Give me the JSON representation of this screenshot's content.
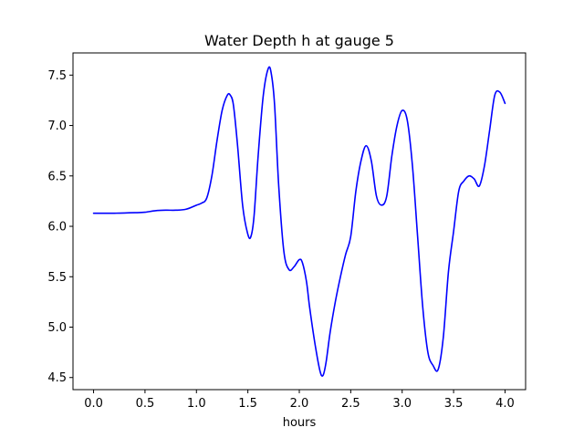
{
  "chart_data": {
    "type": "line",
    "title": "Water Depth h at gauge 5",
    "xlabel": "hours",
    "ylabel": "",
    "xlim": [
      -0.2,
      4.2
    ],
    "ylim": [
      4.38,
      7.72
    ],
    "xticks": [
      "0.0",
      "0.5",
      "1.0",
      "1.5",
      "2.0",
      "2.5",
      "3.0",
      "3.5",
      "4.0"
    ],
    "yticks": [
      "4.5",
      "5.0",
      "5.5",
      "6.0",
      "6.5",
      "7.0",
      "7.5"
    ],
    "grid": false,
    "series": [
      {
        "color": "#0000ff",
        "x": [
          0.0,
          0.2,
          0.4,
          0.5,
          0.6,
          0.7,
          0.8,
          0.9,
          1.0,
          1.05,
          1.1,
          1.15,
          1.2,
          1.25,
          1.3,
          1.33,
          1.36,
          1.4,
          1.45,
          1.5,
          1.53,
          1.56,
          1.6,
          1.65,
          1.7,
          1.73,
          1.76,
          1.8,
          1.85,
          1.9,
          1.95,
          2.0,
          2.03,
          2.07,
          2.1,
          2.15,
          2.2,
          2.23,
          2.26,
          2.3,
          2.35,
          2.4,
          2.45,
          2.5,
          2.55,
          2.6,
          2.65,
          2.7,
          2.75,
          2.8,
          2.85,
          2.9,
          2.95,
          3.0,
          3.05,
          3.1,
          3.15,
          3.2,
          3.25,
          3.3,
          3.35,
          3.4,
          3.45,
          3.5,
          3.55,
          3.6,
          3.65,
          3.7,
          3.75,
          3.8,
          3.85,
          3.9,
          3.95,
          4.0
        ],
        "y": [
          6.13,
          6.13,
          6.135,
          6.14,
          6.155,
          6.16,
          6.16,
          6.17,
          6.21,
          6.23,
          6.28,
          6.5,
          6.85,
          7.15,
          7.3,
          7.3,
          7.2,
          6.8,
          6.2,
          5.92,
          5.9,
          6.1,
          6.7,
          7.3,
          7.57,
          7.5,
          7.2,
          6.4,
          5.75,
          5.57,
          5.6,
          5.67,
          5.64,
          5.45,
          5.2,
          4.85,
          4.57,
          4.52,
          4.65,
          4.95,
          5.25,
          5.5,
          5.72,
          5.9,
          6.35,
          6.65,
          6.8,
          6.65,
          6.3,
          6.21,
          6.3,
          6.7,
          7.0,
          7.15,
          7.05,
          6.6,
          5.9,
          5.2,
          4.75,
          4.62,
          4.58,
          4.9,
          5.55,
          5.95,
          6.35,
          6.45,
          6.5,
          6.47,
          6.4,
          6.6,
          6.95,
          7.3,
          7.33,
          7.22
        ]
      }
    ]
  }
}
